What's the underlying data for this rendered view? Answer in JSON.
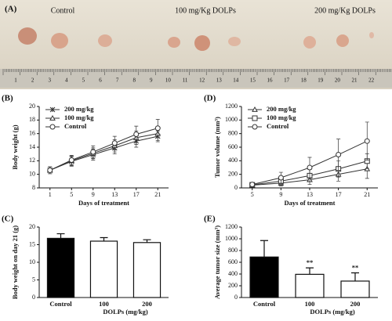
{
  "panel_a": {
    "label": "(A)",
    "groups": [
      "Control",
      "100 mg/Kg DOLPs",
      "200 mg/Kg DOLPs"
    ],
    "ruler": [
      1,
      2,
      3,
      4,
      5,
      6,
      7,
      8,
      9,
      10,
      11,
      12,
      13,
      14,
      15,
      16,
      17,
      18,
      19,
      20,
      21,
      22
    ]
  },
  "chart_data": [
    {
      "type": "line",
      "label": "(B)",
      "xlabel": "Days of treatment",
      "ylabel": "Body weight (g)",
      "x": [
        1,
        5,
        9,
        13,
        17,
        21
      ],
      "xlim": [
        -1,
        23
      ],
      "xticks": [
        1,
        5,
        9,
        13,
        17,
        21
      ],
      "ylim": [
        8,
        20
      ],
      "yticks": [
        8,
        10,
        12,
        14,
        16,
        18,
        20
      ],
      "series": [
        {
          "name": "200 mg/kg",
          "marker": "star",
          "color": "#333",
          "values": [
            10.6,
            11.9,
            12.9,
            13.9,
            14.9,
            15.6
          ],
          "errors": [
            0.5,
            0.7,
            0.8,
            0.9,
            0.9,
            0.8
          ]
        },
        {
          "name": "100 mg/kg",
          "marker": "triangle",
          "color": "#333",
          "values": [
            10.6,
            12.0,
            13.1,
            14.2,
            15.4,
            16.0
          ],
          "errors": [
            0.5,
            0.7,
            0.8,
            0.9,
            1.0,
            1.0
          ]
        },
        {
          "name": "Control",
          "marker": "circle",
          "color": "#333",
          "values": [
            10.6,
            12.1,
            13.3,
            14.6,
            15.9,
            16.8
          ],
          "errors": [
            0.5,
            0.7,
            0.9,
            1.0,
            1.2,
            1.3
          ]
        }
      ]
    },
    {
      "type": "line",
      "label": "(D)",
      "xlabel": "Days of treatment",
      "ylabel": "Tumor volume (mm³)",
      "x": [
        5,
        9,
        13,
        17,
        21
      ],
      "xlim": [
        3.5,
        22.5
      ],
      "xticks": [
        5,
        9,
        13,
        17,
        21
      ],
      "ylim": [
        0,
        1200
      ],
      "yticks": [
        0,
        200,
        400,
        600,
        800,
        1000,
        1200
      ],
      "series": [
        {
          "name": "200 mg/kg",
          "marker": "triangle",
          "color": "#333",
          "values": [
            40,
            70,
            120,
            200,
            280
          ],
          "errors": [
            15,
            40,
            70,
            100,
            140
          ]
        },
        {
          "name": "100 mg/kg",
          "marker": "square",
          "color": "#333",
          "values": [
            45,
            100,
            180,
            280,
            395
          ],
          "errors": [
            15,
            50,
            90,
            120,
            110
          ]
        },
        {
          "name": "Control",
          "marker": "circle",
          "color": "#333",
          "values": [
            50,
            150,
            300,
            490,
            690
          ],
          "errors": [
            20,
            80,
            150,
            230,
            280
          ]
        }
      ]
    },
    {
      "type": "bar",
      "label": "(C)",
      "xlabel": "DOLPs (mg/kg)",
      "ylabel": "Body weight on day 21 (g)",
      "categories": [
        "Control",
        "100",
        "200"
      ],
      "values": [
        16.8,
        16.0,
        15.6
      ],
      "errors": [
        1.3,
        1.0,
        0.8
      ],
      "colors": [
        "#000000",
        "#ffffff",
        "#ffffff"
      ],
      "ylim": [
        0,
        20
      ],
      "yticks": [
        0,
        5,
        10,
        15,
        20
      ]
    },
    {
      "type": "bar",
      "label": "(E)",
      "xlabel": "DOLPs (mg/kg)",
      "ylabel": "Average tumor size (mm³)",
      "categories": [
        "Control",
        "100",
        "200"
      ],
      "values": [
        690,
        395,
        280
      ],
      "errors": [
        280,
        110,
        140
      ],
      "annotations": [
        null,
        "**",
        "**"
      ],
      "colors": [
        "#000000",
        "#ffffff",
        "#ffffff"
      ],
      "ylim": [
        0,
        1200
      ],
      "yticks": [
        0,
        200,
        400,
        600,
        800,
        1000,
        1200
      ]
    }
  ]
}
